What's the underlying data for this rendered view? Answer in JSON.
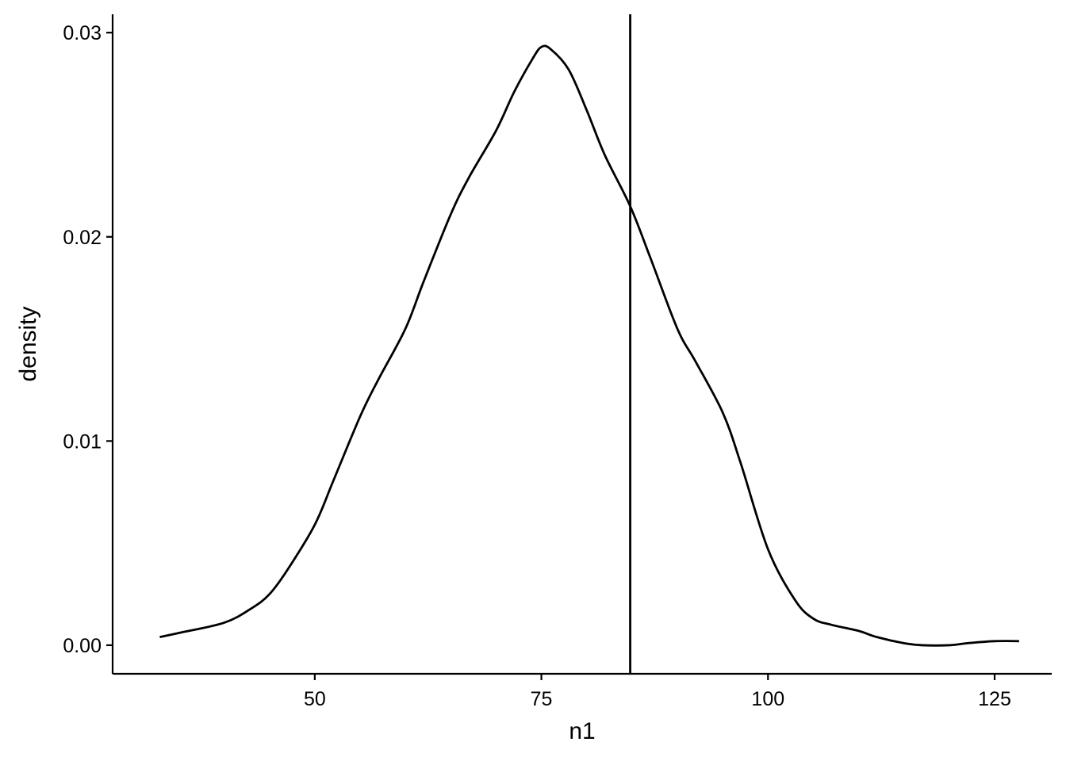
{
  "chart_data": {
    "type": "line",
    "title": "",
    "xlabel": "n1",
    "ylabel": "density",
    "xlim": [
      27.7,
      131.3
    ],
    "ylim": [
      -0.0014,
      0.0309
    ],
    "x_ticks": [
      50,
      75,
      100,
      125
    ],
    "x_tick_labels": [
      "50",
      "75",
      "100",
      "125"
    ],
    "y_ticks": [
      0.0,
      0.01,
      0.02,
      0.03
    ],
    "y_tick_labels": [
      "0.00",
      "0.01",
      "0.02",
      "0.03"
    ],
    "grid": false,
    "legend": "none",
    "reference_line": {
      "orientation": "vertical",
      "x": 84.8
    },
    "series": [
      {
        "x": [
          32.9,
          35,
          40,
          43,
          45,
          47,
          50,
          52,
          55,
          57,
          60,
          62,
          65,
          67,
          70,
          72,
          74,
          75,
          76,
          78,
          80,
          82,
          84.8,
          87,
          90,
          92,
          95,
          97,
          100,
          103,
          105,
          107,
          110,
          112,
          115,
          117,
          120,
          122,
          125,
          127.7
        ],
        "y": [
          0.0004,
          0.0006,
          0.0011,
          0.0018,
          0.0025,
          0.0037,
          0.0059,
          0.008,
          0.0112,
          0.013,
          0.0155,
          0.0178,
          0.0211,
          0.0229,
          0.0252,
          0.0271,
          0.0287,
          0.0293,
          0.0292,
          0.0282,
          0.0262,
          0.024,
          0.0215,
          0.019,
          0.0155,
          0.0139,
          0.0114,
          0.0089,
          0.0047,
          0.0022,
          0.0013,
          0.001,
          0.0007,
          0.0004,
          0.0001,
          0.0,
          0.0,
          0.0001,
          0.0002,
          0.0002
        ]
      }
    ],
    "colors": {
      "line": "#000000",
      "axis": "#000000",
      "background": "#ffffff"
    }
  }
}
